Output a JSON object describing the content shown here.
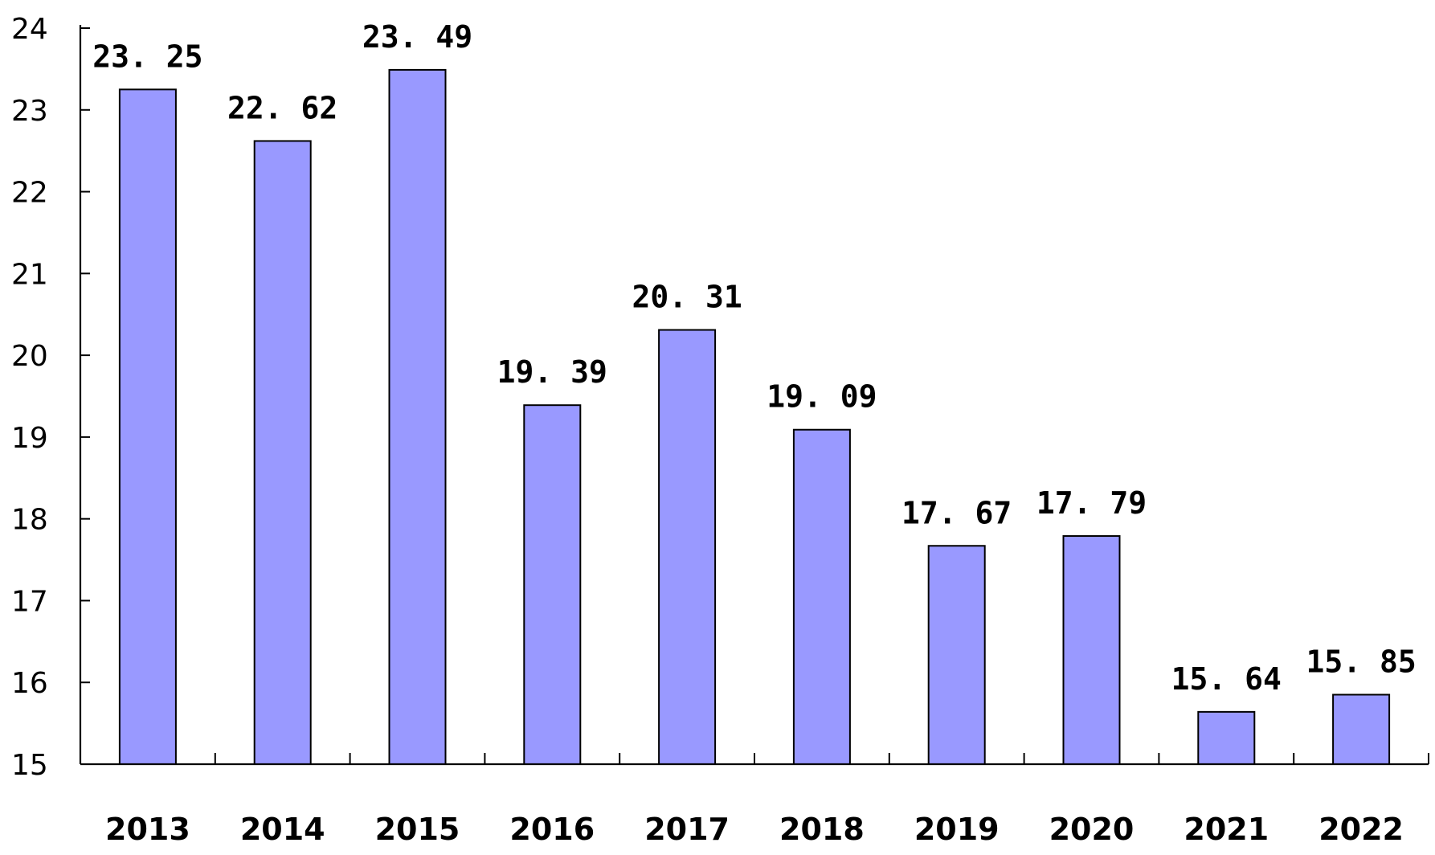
{
  "chart_data": {
    "type": "bar",
    "categories": [
      "2013",
      "2014",
      "2015",
      "2016",
      "2017",
      "2018",
      "2019",
      "2020",
      "2021",
      "2022"
    ],
    "values": [
      23.25,
      22.62,
      23.49,
      19.39,
      20.31,
      19.09,
      17.67,
      17.79,
      15.64,
      15.85
    ],
    "data_labels": [
      "23. 25",
      "22. 62",
      "23. 49",
      "19. 39",
      "20. 31",
      "19. 09",
      "17. 67",
      "17. 79",
      "15. 64",
      "15. 85"
    ],
    "y_ticks": [
      "15",
      "16",
      "17",
      "18",
      "19",
      "20",
      "21",
      "22",
      "23",
      "24"
    ],
    "ylim": [
      15,
      24
    ],
    "title": "",
    "xlabel": "",
    "ylabel": "",
    "grid": false,
    "legend": "none",
    "bar_color": "#9999ff",
    "bar_edge_color": "#000000"
  }
}
